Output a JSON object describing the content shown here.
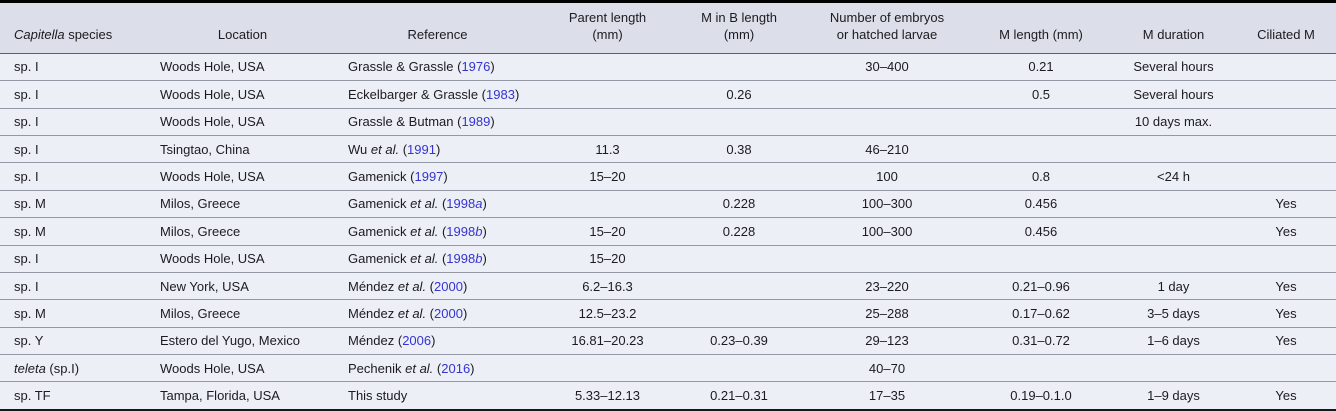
{
  "table": {
    "colors": {
      "header_bg": "#dcdfe9",
      "row_bg": "#edeff7",
      "top_rule": "#000000",
      "row_separator": "#9498a5",
      "link_blue": "#3434cf",
      "text": "#1b1b20"
    },
    "columns": [
      {
        "key": "species",
        "italic_prefix": "Capitella",
        "rest": " species",
        "lines": [
          "Capitella species"
        ]
      },
      {
        "key": "location",
        "lines": [
          "Location"
        ]
      },
      {
        "key": "reference",
        "lines": [
          "Reference"
        ]
      },
      {
        "key": "parent_length",
        "lines": [
          "Parent length",
          "(mm)"
        ]
      },
      {
        "key": "m_in_b_length",
        "lines": [
          "M in B length",
          "(mm)"
        ]
      },
      {
        "key": "num_embryos",
        "lines": [
          "Number of embryos",
          "or hatched larvae"
        ]
      },
      {
        "key": "m_length",
        "lines": [
          "M length (mm)"
        ]
      },
      {
        "key": "m_duration",
        "lines": [
          "M duration"
        ]
      },
      {
        "key": "ciliated",
        "lines": [
          "Ciliated M"
        ]
      }
    ],
    "rows": [
      {
        "species": "sp. I",
        "location": "Woods Hole, USA",
        "reference": {
          "authors": "Grassle & Grassle",
          "et_al": false,
          "year": "1976",
          "year_suffix": ""
        },
        "parent_length": "",
        "m_in_b_length": "",
        "num_embryos": "30–400",
        "m_length": "0.21",
        "m_duration": "Several hours",
        "ciliated": ""
      },
      {
        "species": "sp. I",
        "location": "Woods Hole, USA",
        "reference": {
          "authors": "Eckelbarger & Grassle",
          "et_al": false,
          "year": "1983",
          "year_suffix": ""
        },
        "parent_length": "",
        "m_in_b_length": "0.26",
        "num_embryos": "",
        "m_length": "0.5",
        "m_duration": "Several hours",
        "ciliated": ""
      },
      {
        "species": "sp. I",
        "location": "Woods Hole, USA",
        "reference": {
          "authors": "Grassle & Butman",
          "et_al": false,
          "year": "1989",
          "year_suffix": ""
        },
        "parent_length": "",
        "m_in_b_length": "",
        "num_embryos": "",
        "m_length": "",
        "m_duration": "10 days max.",
        "ciliated": ""
      },
      {
        "species": "sp. I",
        "location": "Tsingtao, China",
        "reference": {
          "authors": "Wu",
          "et_al": true,
          "year": "1991",
          "year_suffix": ""
        },
        "parent_length": "11.3",
        "m_in_b_length": "0.38",
        "num_embryos": "46–210",
        "m_length": "",
        "m_duration": "",
        "ciliated": ""
      },
      {
        "species": "sp. I",
        "location": "Woods Hole, USA",
        "reference": {
          "authors": "Gamenick",
          "et_al": false,
          "year": "1997",
          "year_suffix": ""
        },
        "parent_length": "15–20",
        "m_in_b_length": "",
        "num_embryos": "100",
        "m_length": "0.8",
        "m_duration": "<24 h",
        "ciliated": ""
      },
      {
        "species": "sp. M",
        "location": "Milos, Greece",
        "reference": {
          "authors": "Gamenick",
          "et_al": true,
          "year": "1998",
          "year_suffix": "a"
        },
        "parent_length": "",
        "m_in_b_length": "0.228",
        "num_embryos": "100–300",
        "m_length": "0.456",
        "m_duration": "",
        "ciliated": "Yes"
      },
      {
        "species": "sp. M",
        "location": "Milos, Greece",
        "reference": {
          "authors": "Gamenick",
          "et_al": true,
          "year": "1998",
          "year_suffix": "b"
        },
        "parent_length": "15–20",
        "m_in_b_length": "0.228",
        "num_embryos": "100–300",
        "m_length": "0.456",
        "m_duration": "",
        "ciliated": "Yes"
      },
      {
        "species": "sp. I",
        "location": "Woods Hole, USA",
        "reference": {
          "authors": "Gamenick",
          "et_al": true,
          "year": "1998",
          "year_suffix": "b"
        },
        "parent_length": "15–20",
        "m_in_b_length": "",
        "num_embryos": "",
        "m_length": "",
        "m_duration": "",
        "ciliated": ""
      },
      {
        "species": "sp. I",
        "location": "New York, USA",
        "reference": {
          "authors": "Méndez",
          "et_al": true,
          "year": "2000",
          "year_suffix": ""
        },
        "parent_length": "6.2–16.3",
        "m_in_b_length": "",
        "num_embryos": "23–220",
        "m_length": "0.21–0.96",
        "m_duration": "1 day",
        "ciliated": "Yes"
      },
      {
        "species": "sp. M",
        "location": "Milos, Greece",
        "reference": {
          "authors": "Méndez",
          "et_al": true,
          "year": "2000",
          "year_suffix": ""
        },
        "parent_length": "12.5–23.2",
        "m_in_b_length": "",
        "num_embryos": "25–288",
        "m_length": "0.17–0.62",
        "m_duration": "3–5 days",
        "ciliated": "Yes"
      },
      {
        "species": "sp. Y",
        "location": "Estero del Yugo, Mexico",
        "reference": {
          "authors": "Méndez",
          "et_al": false,
          "year": "2006",
          "year_suffix": ""
        },
        "parent_length": "16.81–20.23",
        "m_in_b_length": "0.23–0.39",
        "num_embryos": "29–123",
        "m_length": "0.31–0.72",
        "m_duration": "1–6 days",
        "ciliated": "Yes"
      },
      {
        "species": {
          "italic": "teleta",
          "rest": " (sp.I)"
        },
        "location": "Woods Hole, USA",
        "reference": {
          "authors": "Pechenik",
          "et_al": true,
          "year": "2016",
          "year_suffix": ""
        },
        "parent_length": "",
        "m_in_b_length": "",
        "num_embryos": "40–70",
        "m_length": "",
        "m_duration": "",
        "ciliated": ""
      },
      {
        "species": "sp. TF",
        "location": "Tampa, Florida, USA",
        "reference": {
          "authors": "This study",
          "et_al": false,
          "year": null,
          "year_suffix": ""
        },
        "parent_length": "5.33–12.13",
        "m_in_b_length": "0.21–0.31",
        "num_embryos": "17–35",
        "m_length": "0.19–0.1.0",
        "m_duration": "1–9 days",
        "ciliated": "Yes"
      }
    ]
  }
}
